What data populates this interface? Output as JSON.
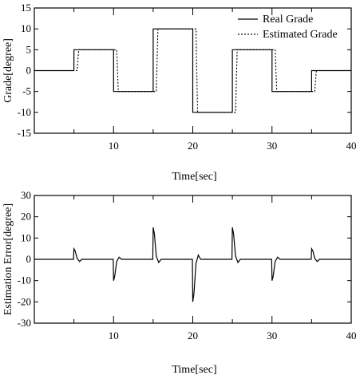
{
  "chart_data": [
    {
      "type": "line",
      "xlabel": "Time[sec]",
      "ylabel": "Grade[degree]",
      "xlim": [
        0,
        40
      ],
      "ylim": [
        -15,
        15
      ],
      "xticks": [
        10,
        20,
        30,
        40
      ],
      "yticks": [
        15,
        10,
        5,
        0,
        -5,
        -10,
        -15
      ],
      "grid": false,
      "legend_position": "top-right",
      "series": [
        {
          "name": "Real Grade",
          "style": "solid",
          "x": [
            0,
            5,
            5,
            10,
            10,
            15,
            15,
            20,
            20,
            25,
            25,
            30,
            30,
            35,
            35,
            40
          ],
          "y": [
            0,
            0,
            5,
            5,
            -5,
            -5,
            10,
            10,
            -10,
            -10,
            5,
            5,
            -5,
            -5,
            0,
            0
          ]
        },
        {
          "name": "Estimated Grade",
          "style": "dotted",
          "x": [
            0,
            5.4,
            5.6,
            10.4,
            10.6,
            15.4,
            15.6,
            20.4,
            20.6,
            25.4,
            25.6,
            30.4,
            30.6,
            35.4,
            35.6,
            40
          ],
          "y": [
            0,
            0,
            5,
            5,
            -5,
            -5,
            10,
            10,
            -10,
            -10,
            5,
            5,
            -5,
            -5,
            0,
            0
          ]
        }
      ]
    },
    {
      "type": "line",
      "xlabel": "Time[sec]",
      "ylabel": "Estimation Error[degree]",
      "xlim": [
        0,
        40
      ],
      "ylim": [
        -30,
        30
      ],
      "xticks": [
        10,
        20,
        30,
        40
      ],
      "yticks": [
        30,
        20,
        10,
        0,
        -10,
        -20,
        -30
      ],
      "grid": false,
      "series": [
        {
          "name": "",
          "style": "solid",
          "x": [
            0,
            4.95,
            5.0,
            5.15,
            5.4,
            5.7,
            6.0,
            9.95,
            10.0,
            10.15,
            10.4,
            10.7,
            11.0,
            14.95,
            15.0,
            15.15,
            15.4,
            15.7,
            16.0,
            19.95,
            20.0,
            20.15,
            20.4,
            20.7,
            21.0,
            24.95,
            25.0,
            25.15,
            25.4,
            25.7,
            26.0,
            29.95,
            30.0,
            30.15,
            30.4,
            30.7,
            31.0,
            34.95,
            35.0,
            35.15,
            35.4,
            35.7,
            36.0,
            40
          ],
          "y": [
            0,
            0,
            5,
            4,
            0.5,
            -1,
            0,
            0,
            -10,
            -8,
            -1,
            1,
            0,
            0,
            15,
            12,
            1.5,
            -1.5,
            0,
            0,
            -20,
            -16,
            -2,
            2,
            0,
            0,
            15,
            12,
            1.5,
            -1.5,
            0,
            0,
            -10,
            -8,
            -1,
            1,
            0,
            0,
            5,
            4,
            0.5,
            -1,
            0,
            0
          ]
        }
      ]
    }
  ]
}
